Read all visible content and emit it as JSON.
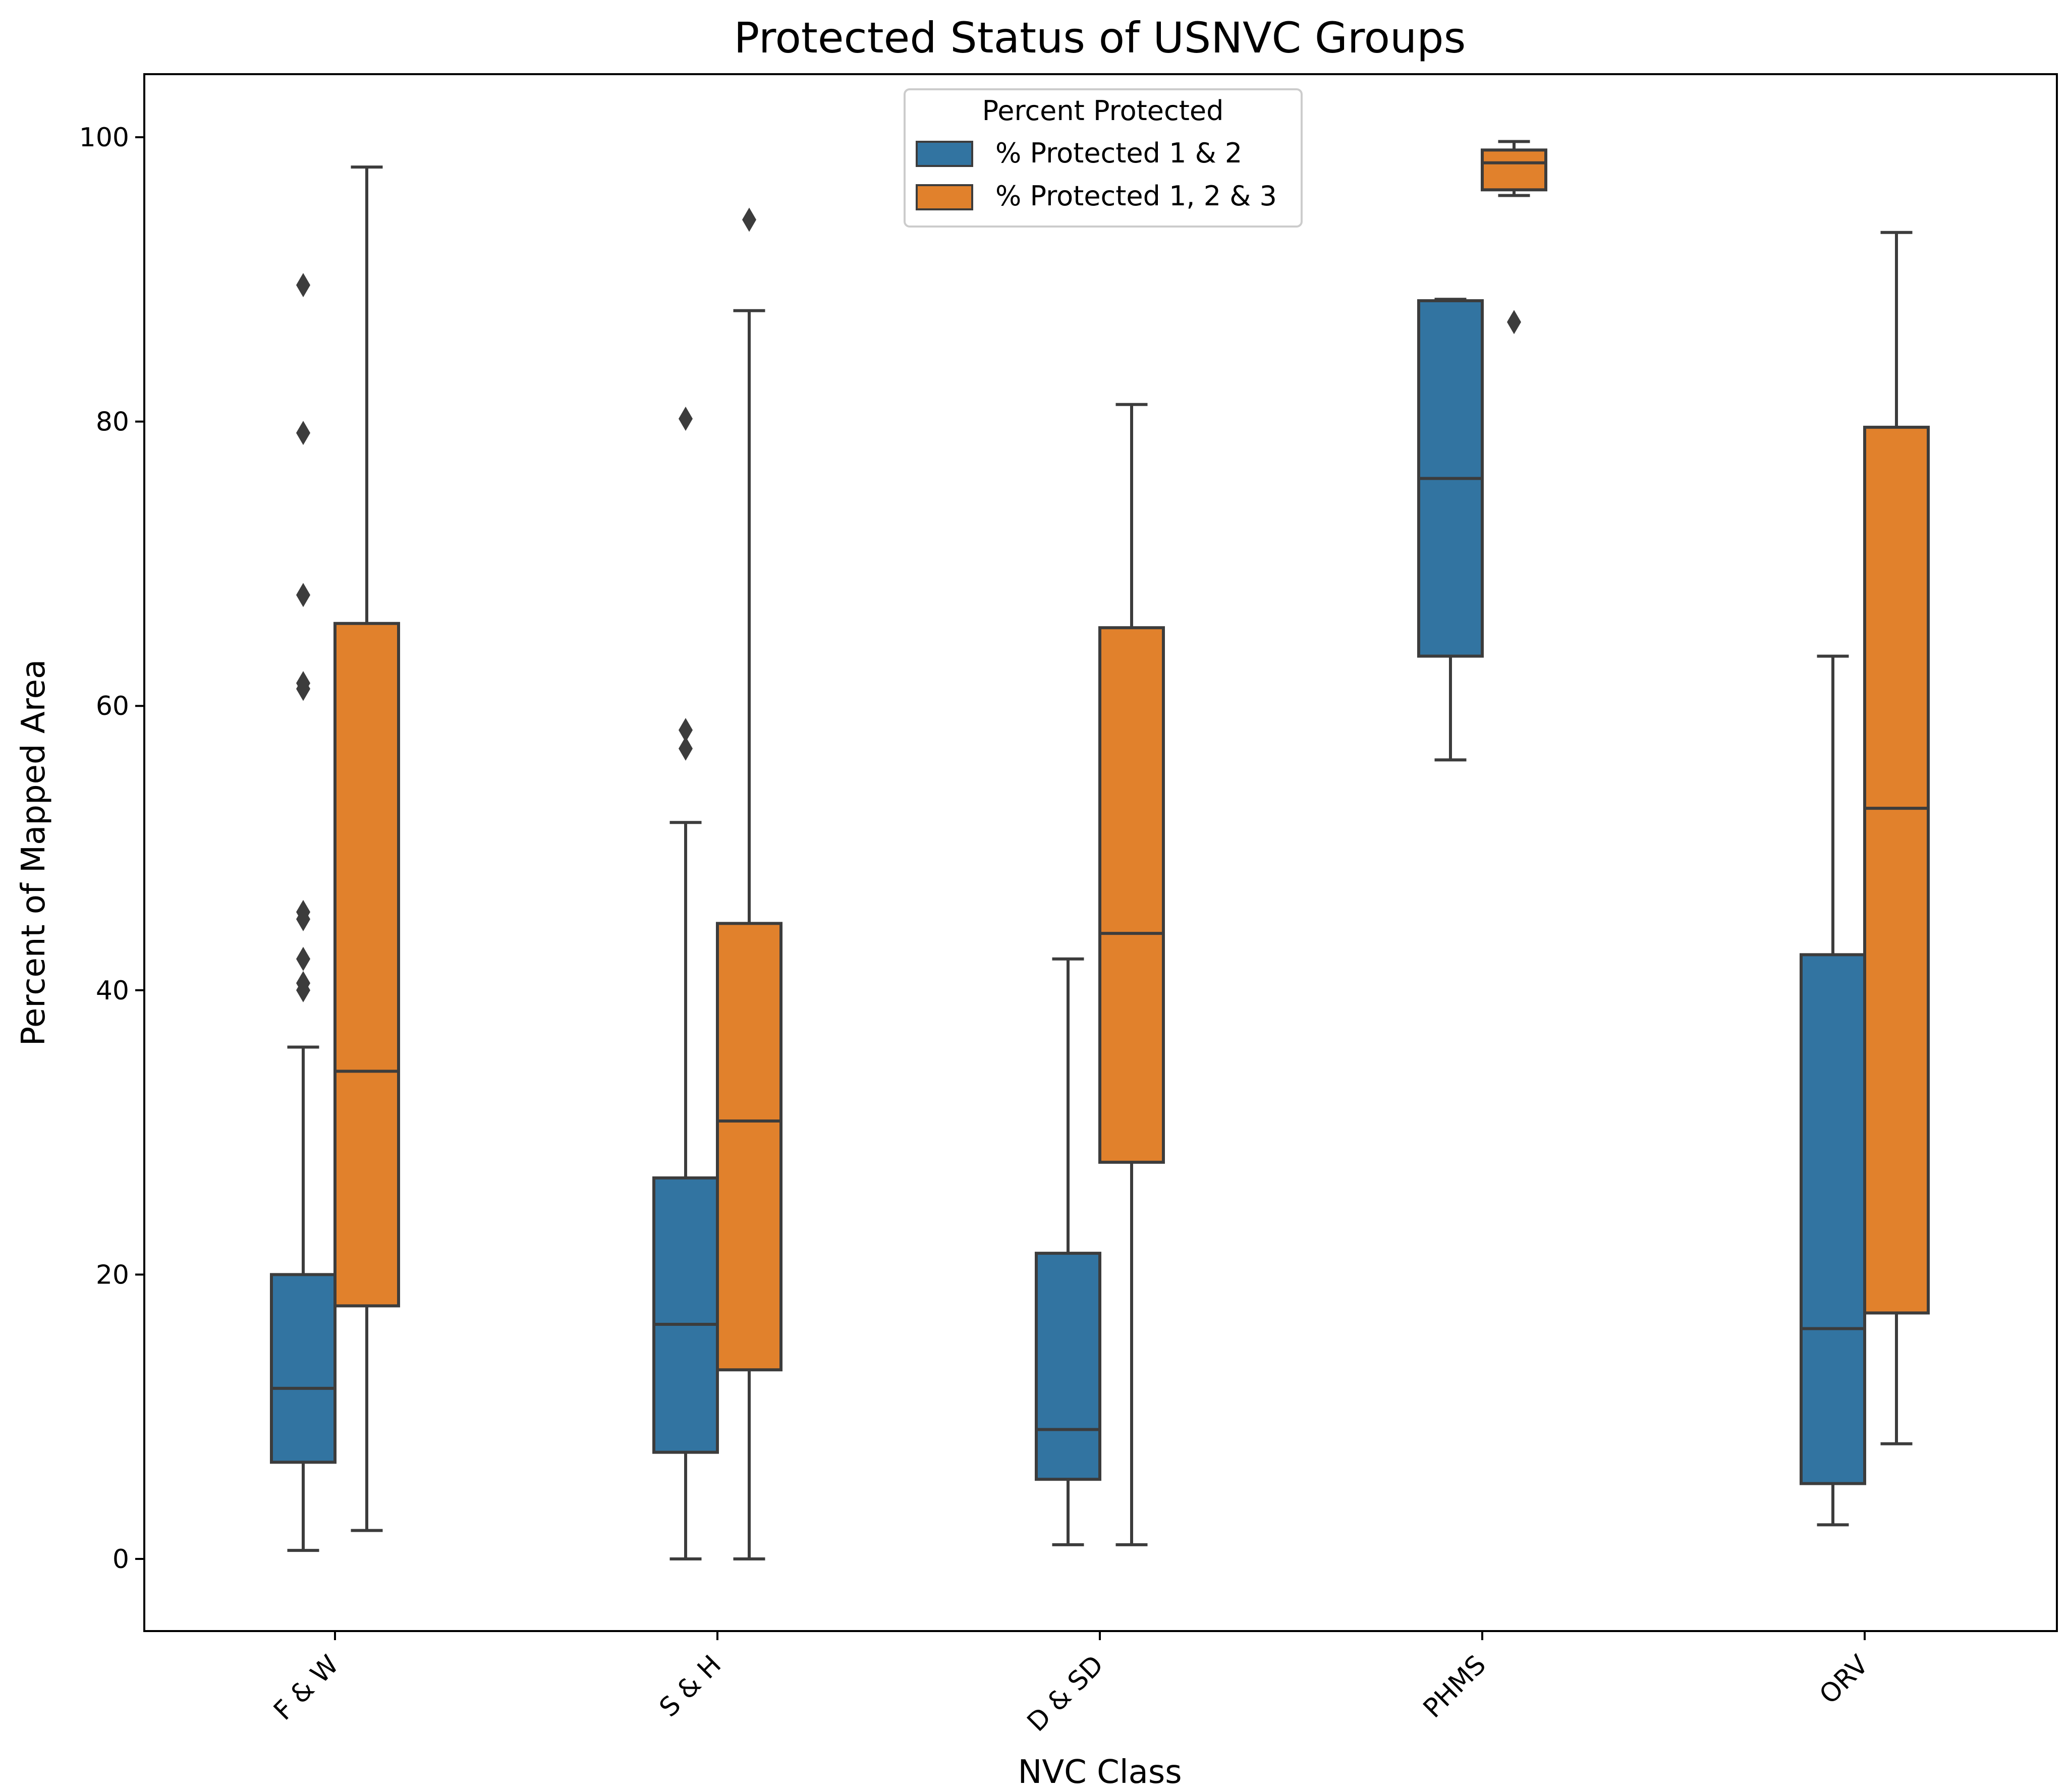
{
  "chart_data": {
    "type": "box",
    "title": "Protected Status of USNVC Groups",
    "xlabel": "NVC Class",
    "ylabel": "Percent of Mapped Area",
    "ylim": [
      -5,
      105
    ],
    "yticks": [
      0,
      20,
      40,
      60,
      80,
      100
    ],
    "categories": [
      "F & W",
      "S & H",
      "D & SD",
      "PHMS",
      "ORV"
    ],
    "legend": {
      "title": "Percent Protected",
      "position": "top-center"
    },
    "series": [
      {
        "name": "% Protected 1 & 2",
        "color": "#3274a1",
        "boxes": [
          {
            "whisker_low": 0.6,
            "q1": 6.8,
            "median": 12.0,
            "q3": 20.0,
            "whisker_high": 36.0,
            "outliers": [
              40.0,
              40.5,
              42.2,
              45.0,
              45.5,
              61.2,
              61.6,
              67.8,
              79.2,
              89.6
            ]
          },
          {
            "whisker_low": 0.0,
            "q1": 7.5,
            "median": 16.5,
            "q3": 26.8,
            "whisker_high": 51.8,
            "outliers": [
              57.0,
              58.3,
              80.2
            ]
          },
          {
            "whisker_low": 1.0,
            "q1": 5.6,
            "median": 9.1,
            "q3": 21.5,
            "whisker_high": 42.2,
            "outliers": []
          },
          {
            "whisker_low": 56.2,
            "q1": 63.5,
            "median": 76.0,
            "q3": 88.5,
            "whisker_high": 88.6,
            "outliers": []
          },
          {
            "whisker_low": 2.4,
            "q1": 5.3,
            "median": 16.2,
            "q3": 42.5,
            "whisker_high": 63.5,
            "outliers": []
          }
        ]
      },
      {
        "name": "% Protected 1, 2 & 3",
        "color": "#e1812c",
        "boxes": [
          {
            "whisker_low": 2.0,
            "q1": 17.8,
            "median": 34.3,
            "q3": 65.8,
            "whisker_high": 97.9,
            "outliers": []
          },
          {
            "whisker_low": 0.0,
            "q1": 13.3,
            "median": 30.8,
            "q3": 44.7,
            "whisker_high": 87.8,
            "outliers": [
              94.2
            ]
          },
          {
            "whisker_low": 1.0,
            "q1": 27.9,
            "median": 44.0,
            "q3": 65.5,
            "whisker_high": 81.2,
            "outliers": []
          },
          {
            "whisker_low": 95.9,
            "q1": 96.3,
            "median": 98.2,
            "q3": 99.1,
            "whisker_high": 99.7,
            "outliers": [
              87.0
            ]
          },
          {
            "whisker_low": 8.1,
            "q1": 17.3,
            "median": 52.8,
            "q3": 79.6,
            "whisker_high": 93.3,
            "outliers": []
          }
        ]
      }
    ]
  }
}
